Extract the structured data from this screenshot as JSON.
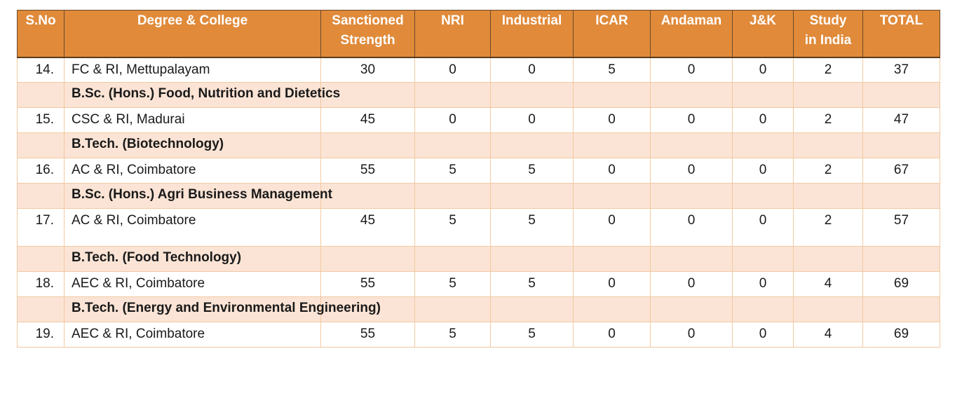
{
  "headers": [
    "S.No",
    "Degree & College",
    "Sanctioned Strength",
    "NRI",
    "Industrial",
    "ICAR",
    "Andaman",
    "J&K",
    "Study in India",
    "TOTAL"
  ],
  "header_lines": {
    "sanctioned_1": "Sanctioned",
    "sanctioned_2": "Strength",
    "study_1": "Study",
    "study_2": "in India"
  },
  "rows": [
    {
      "type": "data",
      "sno": "14.",
      "college": "FC & RI, Mettupalayam",
      "sanctioned": "30",
      "nri": "0",
      "industrial": "0",
      "icar": "5",
      "andaman": "0",
      "jk": "0",
      "study": "2",
      "total": "37"
    },
    {
      "type": "degree",
      "label": "B.Sc. (Hons.) Food, Nutrition and Dietetics"
    },
    {
      "type": "data",
      "sno": "15.",
      "college": "CSC & RI, Madurai",
      "sanctioned": "45",
      "nri": "0",
      "industrial": "0",
      "icar": "0",
      "andaman": "0",
      "jk": "0",
      "study": "2",
      "total": "47"
    },
    {
      "type": "degree",
      "label": "B.Tech. (Biotechnology)"
    },
    {
      "type": "data",
      "sno": "16.",
      "college": "AC & RI, Coimbatore",
      "sanctioned": "55",
      "nri": "5",
      "industrial": "5",
      "icar": "0",
      "andaman": "0",
      "jk": "0",
      "study": "2",
      "total": "67"
    },
    {
      "type": "degree",
      "label": "B.Sc. (Hons.) Agri Business Management"
    },
    {
      "type": "data",
      "sno": "17.",
      "college": "AC & RI, Coimbatore",
      "sanctioned": "45",
      "nri": "5",
      "industrial": "5",
      "icar": "0",
      "andaman": "0",
      "jk": "0",
      "study": "2",
      "total": "57"
    },
    {
      "type": "degree",
      "label": "B.Tech. (Food Technology)"
    },
    {
      "type": "data",
      "sno": "18.",
      "college": "AEC & RI, Coimbatore",
      "sanctioned": "55",
      "nri": "5",
      "industrial": "5",
      "icar": "0",
      "andaman": "0",
      "jk": "0",
      "study": "4",
      "total": "69"
    },
    {
      "type": "degree",
      "label": "B.Tech. (Energy and Environmental Engineering)"
    },
    {
      "type": "data",
      "sno": "19.",
      "college": "AEC & RI, Coimbatore",
      "sanctioned": "55",
      "nri": "5",
      "industrial": "5",
      "icar": "0",
      "andaman": "0",
      "jk": "0",
      "study": "4",
      "total": "69"
    }
  ],
  "colors": {
    "header_bg": "#e08a3a",
    "header_text": "#ffffff",
    "degree_row_bg": "#fbe4d5",
    "grid": "#f2c9a2"
  }
}
